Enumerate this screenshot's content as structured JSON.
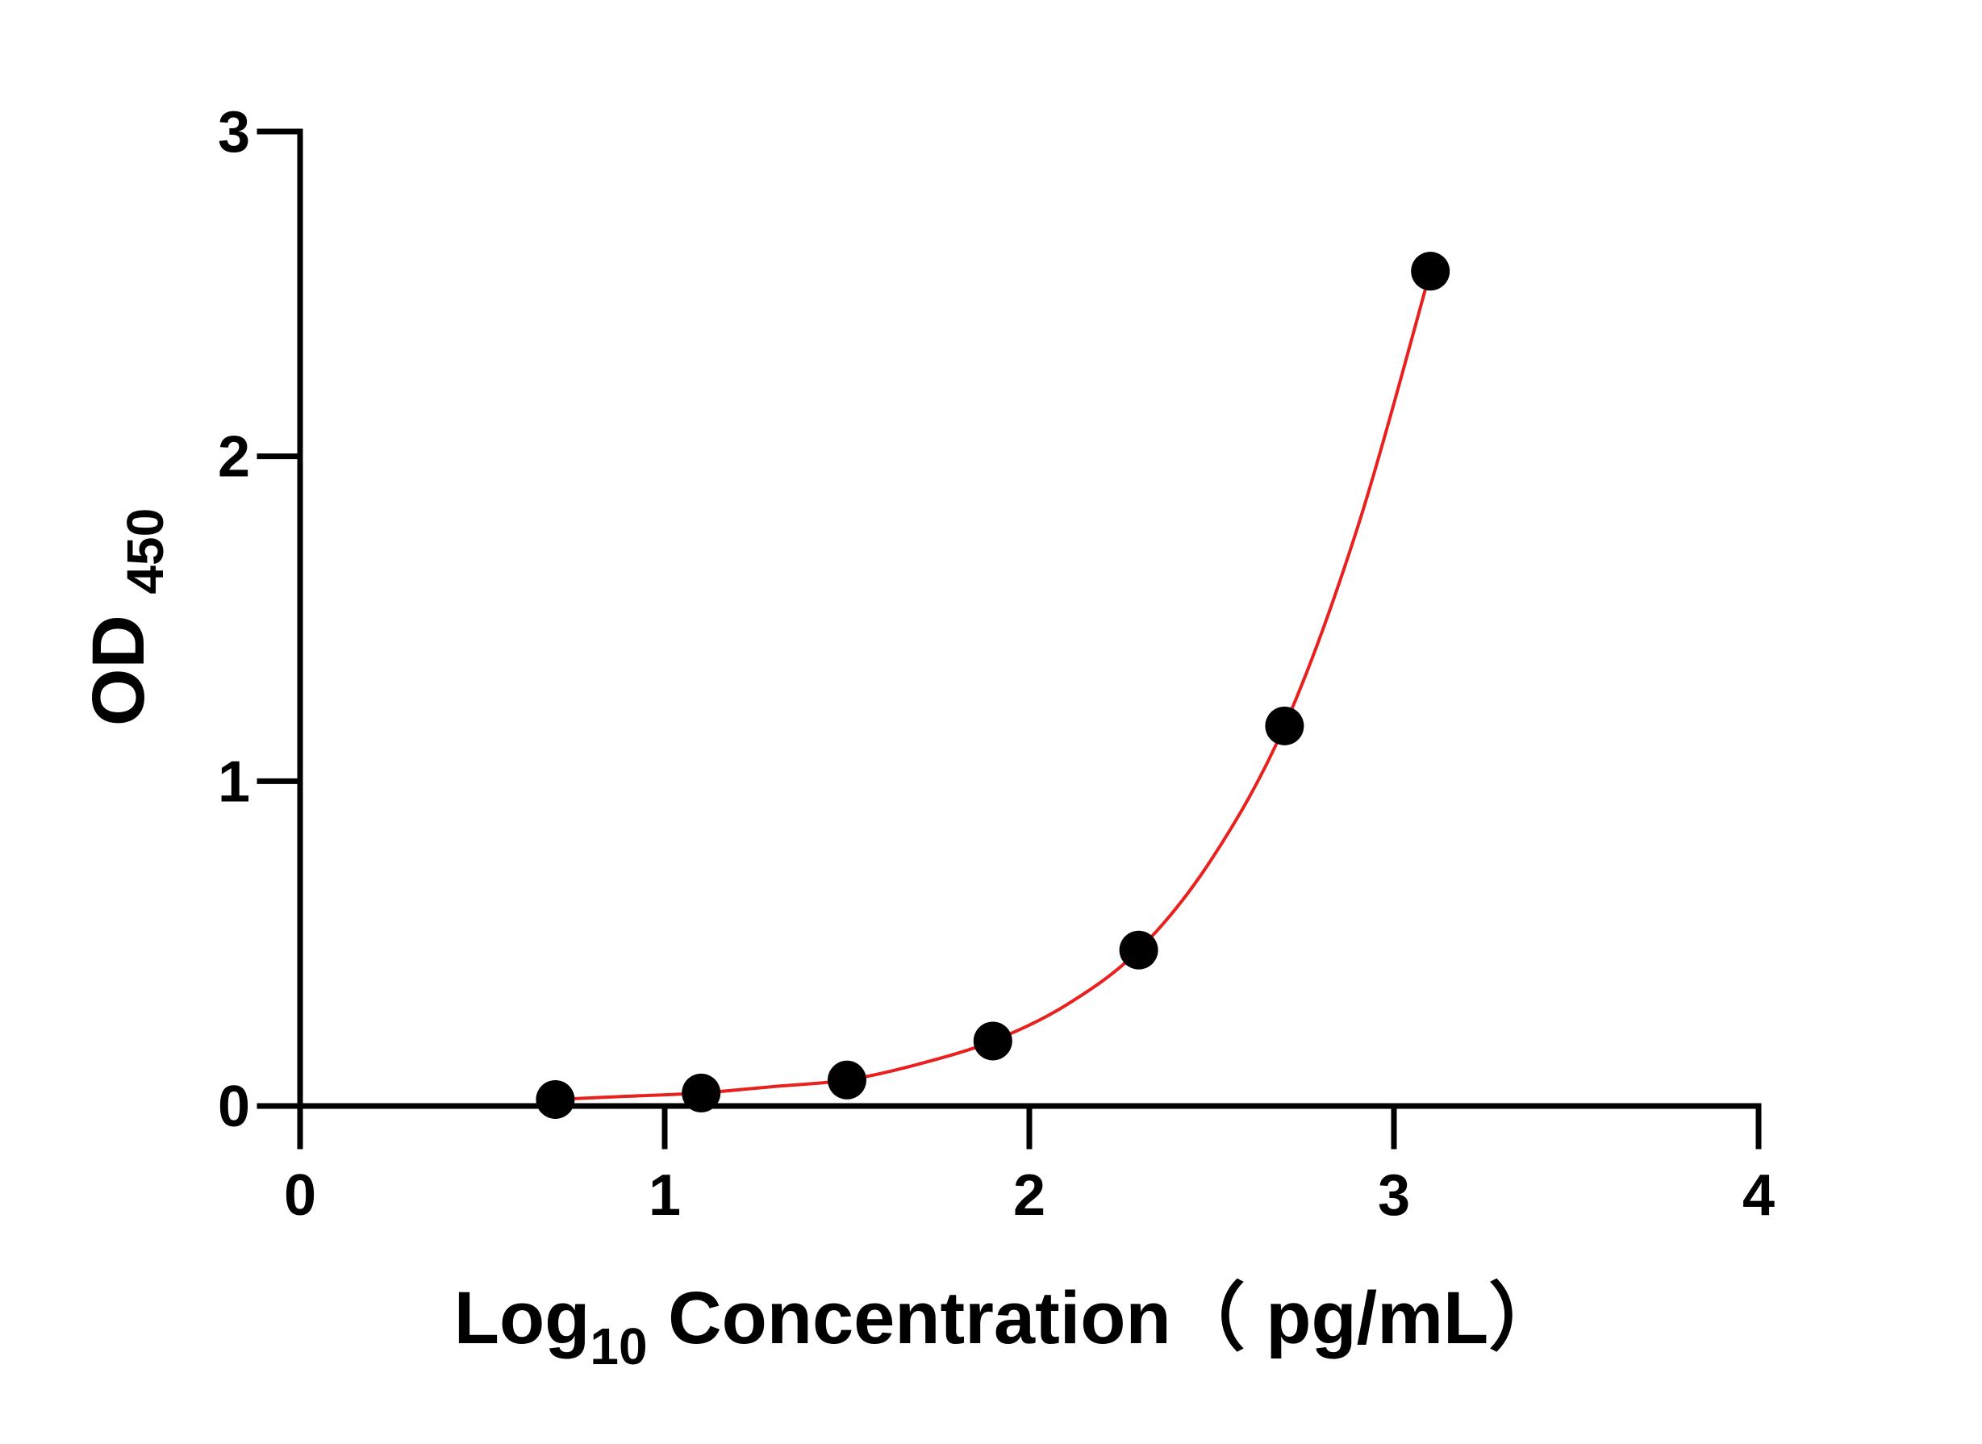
{
  "chart_data": {
    "type": "scatter",
    "title": "",
    "xlabel": {
      "parts": [
        "Log",
        "10",
        " Concentration（ pg/mL）"
      ]
    },
    "ylabel": {
      "parts": [
        "OD ",
        "450"
      ]
    },
    "xlim": [
      0,
      4
    ],
    "ylim": [
      0,
      3
    ],
    "x_ticks": [
      "0",
      "1",
      "2",
      "3",
      "4"
    ],
    "y_ticks": [
      "0",
      "1",
      "2",
      "3"
    ],
    "grid": false,
    "legend": "none",
    "series": [
      {
        "type": "scatter",
        "color": "#000000",
        "x": [
          0.7,
          1.1,
          1.5,
          1.9,
          2.3,
          2.7,
          3.1
        ],
        "y": [
          0.02,
          0.04,
          0.08,
          0.2,
          0.48,
          1.17,
          2.57
        ]
      },
      {
        "type": "line",
        "fit": true,
        "color": "#e8201e",
        "x": [
          0.7,
          0.9,
          1.1,
          1.3,
          1.5,
          1.7,
          1.9,
          2.1,
          2.3,
          2.5,
          2.7,
          2.9,
          3.1
        ],
        "y": [
          0.02,
          0.03,
          0.04,
          0.06,
          0.08,
          0.13,
          0.2,
          0.31,
          0.48,
          0.76,
          1.17,
          1.78,
          2.57
        ]
      }
    ]
  }
}
